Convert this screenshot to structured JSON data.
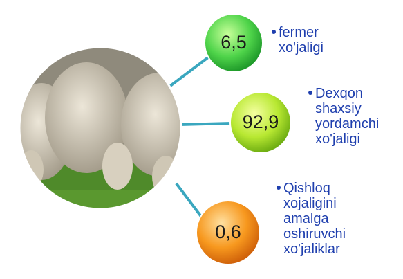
{
  "items": [
    {
      "value": "6,5",
      "label": [
        "fermer",
        "xo'jaligi"
      ]
    },
    {
      "value": "92,9",
      "label": [
        "Dexqon",
        "shaxsiy",
        "yordamchi",
        "xo'jaligi"
      ]
    },
    {
      "value": "0,6",
      "label": [
        "Qishloq",
        "xojaligini",
        "amalga",
        "oshiruvchi",
        "xo'jaliklar"
      ]
    }
  ]
}
